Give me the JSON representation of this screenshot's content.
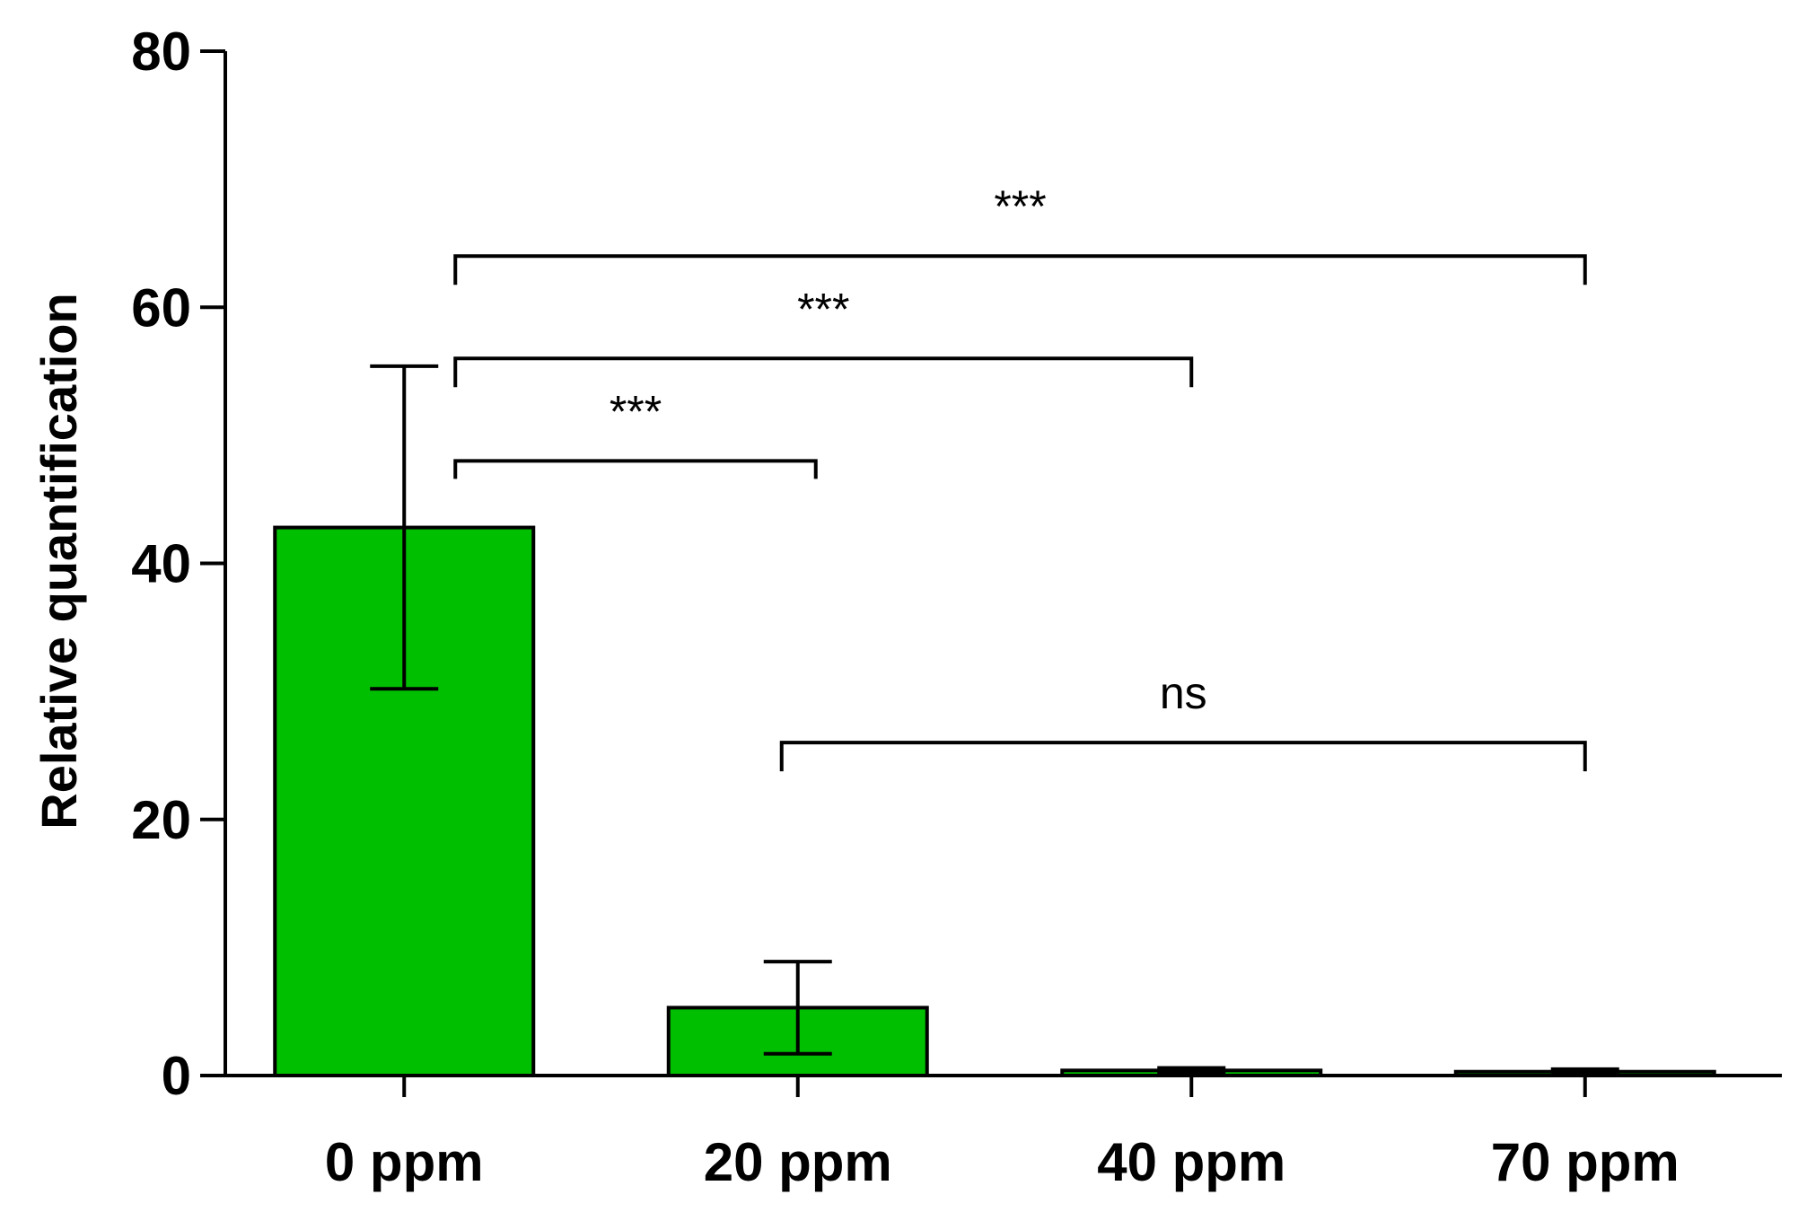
{
  "chart_data": {
    "type": "bar",
    "title": "",
    "xlabel": "",
    "ylabel": "Relative quantification",
    "ylim": [
      0,
      80
    ],
    "yticks": [
      0,
      20,
      40,
      60,
      80
    ],
    "grid": false,
    "bar_color": "#00bf00",
    "categories": [
      "0 ppm",
      "20 ppm",
      "40 ppm",
      "70 ppm"
    ],
    "values": [
      42.8,
      5.3,
      0.4,
      0.3
    ],
    "errors": [
      12.6,
      3.6,
      0.2,
      0.2
    ],
    "comparisons": [
      {
        "from": 0,
        "to": 1,
        "label": "***",
        "y": 48
      },
      {
        "from": 0,
        "to": 2,
        "label": "***",
        "y": 56
      },
      {
        "from": 0,
        "to": 3,
        "label": "***",
        "y": 64
      },
      {
        "from": 1,
        "to": 3,
        "label": "ns",
        "y": 26
      }
    ]
  }
}
